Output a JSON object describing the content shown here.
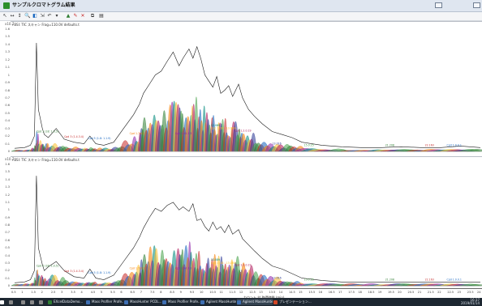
{
  "window": {
    "title": "サンプルクロマトグラム結果"
  },
  "toolbar": {
    "icons": [
      "pointer-icon",
      "scale-icon",
      "zoom-icon",
      "pan-icon",
      "fit-icon",
      "autoscale-icon",
      "undo-icon",
      "redo-icon",
      "mark-peaks-icon",
      "label-icon",
      "clear-icon",
      "copy-icon",
      "print-icon"
    ]
  },
  "panes": [
    {
      "label": "+BSI: TIC スキャン Frag=110.0V defaults.t",
      "yaxis_title": "x10 7"
    },
    {
      "label": "+BSI: TIC スキャン Frag=110.0V defaults.t",
      "yaxis_title": "x10 7"
    }
  ],
  "chart_data": [
    {
      "type": "line",
      "title": "+BSI: TIC スキャン Frag=110.0V defaults.t",
      "xlabel": "カウント 対 取得時間 (min)",
      "ylabel": "x10 7",
      "xlim": [
        0.5,
        24
      ],
      "ylim": [
        0,
        1.6
      ],
      "yticks": [
        "1.6",
        "1.5",
        "1.4",
        "1.3",
        "1.2",
        "1.1",
        "1",
        "0.9",
        "0.8",
        "0.7",
        "0.6",
        "0.5",
        "0.4",
        "0.3",
        "0.2",
        "0.1",
        "0"
      ],
      "series": [
        {
          "x": [
            0.5,
            1.0,
            1.3,
            1.5,
            1.6,
            1.7,
            1.9,
            2.0,
            2.2,
            2.6,
            3.0,
            3.5,
            4.0,
            4.3,
            4.6,
            5.0,
            5.5,
            6.0,
            6.5,
            6.8,
            7.0,
            7.3,
            7.6,
            7.9,
            8.2,
            8.5,
            8.8,
            9.0,
            9.3,
            9.5,
            9.7,
            9.9,
            10.1,
            10.3,
            10.5,
            10.7,
            10.9,
            11.1,
            11.3,
            11.5,
            11.8,
            12.0,
            12.3,
            12.6,
            13.0,
            13.5,
            14.0,
            14.5,
            15.0,
            16.0,
            17.0,
            18.0,
            19.0,
            20.0,
            21.0,
            22.0,
            23.0,
            24.0
          ],
          "y": [
            0.04,
            0.05,
            0.08,
            0.2,
            1.42,
            0.55,
            0.3,
            0.22,
            0.18,
            0.3,
            0.16,
            0.12,
            0.1,
            0.2,
            0.1,
            0.08,
            0.12,
            0.3,
            0.48,
            0.62,
            0.76,
            0.88,
            1.0,
            1.05,
            1.18,
            1.3,
            1.12,
            1.22,
            1.34,
            1.22,
            1.37,
            1.21,
            1.0,
            0.92,
            0.84,
            0.98,
            0.76,
            0.8,
            0.86,
            0.72,
            0.88,
            0.7,
            0.55,
            0.46,
            0.36,
            0.26,
            0.22,
            0.18,
            0.12,
            0.08,
            0.06,
            0.05,
            0.05,
            0.06,
            0.05,
            0.05,
            0.07,
            0.05
          ]
        }
      ],
      "annotations": [
        "Cpd 1 (18: 1.0.5)",
        "Cpd 3 (1.4.3.4)",
        "Cpd 5 (1.8: 1.1.9)",
        "Cpd 1.7.0.2",
        "Cpd 2.44.3.3",
        "13.089",
        "Cpd 1 (18 : 13.089)",
        "Cpd 1.2.0.19",
        "13.016",
        "15.0.25",
        "21.208",
        "22.163",
        "Cpd 1.0.0.1"
      ]
    },
    {
      "type": "line",
      "title": "+BSI: TIC スキャン Frag=110.0V defaults.t",
      "xlabel": "カウント 対 取得時間 (min)",
      "ylabel": "x10 7",
      "xlim": [
        0.5,
        24
      ],
      "ylim": [
        0,
        1.6
      ],
      "yticks": [
        "1.6",
        "1.5",
        "1.4",
        "1.3",
        "1.2",
        "1.1",
        "1",
        "0.9",
        "0.8",
        "0.7",
        "0.6",
        "0.5",
        "0.4",
        "0.3",
        "0.2",
        "0.1",
        "0"
      ],
      "series": [
        {
          "x": [
            0.5,
            1.0,
            1.3,
            1.5,
            1.6,
            1.7,
            1.9,
            2.0,
            2.2,
            2.6,
            3.0,
            3.5,
            4.0,
            4.3,
            4.6,
            5.0,
            5.5,
            6.0,
            6.5,
            6.8,
            7.0,
            7.3,
            7.6,
            7.9,
            8.2,
            8.5,
            8.8,
            9.0,
            9.3,
            9.5,
            9.7,
            9.9,
            10.1,
            10.3,
            10.5,
            10.7,
            10.9,
            11.1,
            11.3,
            11.5,
            11.8,
            12.0,
            12.3,
            12.6,
            13.0,
            13.5,
            14.0,
            14.5,
            15.0,
            16.0,
            17.0,
            18.0,
            19.0,
            20.0,
            21.0,
            22.0,
            23.0,
            24.0
          ],
          "y": [
            0.04,
            0.05,
            0.08,
            0.2,
            1.45,
            0.5,
            0.28,
            0.2,
            0.25,
            0.32,
            0.2,
            0.12,
            0.1,
            0.22,
            0.1,
            0.08,
            0.14,
            0.32,
            0.5,
            0.64,
            0.76,
            0.9,
            1.02,
            0.98,
            1.06,
            1.1,
            1.0,
            1.04,
            0.98,
            1.08,
            0.86,
            0.88,
            0.78,
            0.72,
            0.84,
            0.74,
            0.78,
            0.7,
            0.8,
            0.68,
            0.74,
            0.62,
            0.54,
            0.46,
            0.36,
            0.26,
            0.22,
            0.16,
            0.1,
            0.07,
            0.05,
            0.05,
            0.05,
            0.05,
            0.05,
            0.05,
            0.05,
            0.05
          ]
        }
      ],
      "annotations": [
        "Cpd 1 (18: 1.0.5)",
        "Cpd 3 (1.4.3.4)",
        "Cpd 5 (1.8: 1.1.9)",
        "Cpd 1.7.0.2",
        "Cpd 2.44.3.3",
        "13.089",
        "Cpd 1 (18 : 13.089)",
        "Cpd 1.2.0.19",
        "13.016",
        "15.0.25",
        "21.208",
        "22.163",
        "Cpd 1.0.0.1"
      ]
    }
  ],
  "xaxis": {
    "ticks": [
      "0.5",
      "1",
      "1.5",
      "2",
      "2.5",
      "3",
      "3.5",
      "4",
      "4.5",
      "5",
      "5.5",
      "6",
      "6.5",
      "7",
      "7.5",
      "8",
      "8.5",
      "9",
      "9.5",
      "10",
      "10.5",
      "11",
      "11.5",
      "12",
      "12.5",
      "13",
      "13.5",
      "14",
      "14.5",
      "15",
      "15.5",
      "16",
      "16.5",
      "17",
      "17.5",
      "18",
      "18.5",
      "19",
      "19.5",
      "20",
      "20.5",
      "21",
      "21.5",
      "22",
      "22.5",
      "23",
      "23.5",
      "24"
    ],
    "title": "カウント 対 取得時間 (min)"
  },
  "taskbar": {
    "items": [
      {
        "label": ""
      },
      {
        "label": ""
      },
      {
        "label": ""
      },
      {
        "label": ""
      },
      {
        "label": ""
      },
      {
        "label": "EXcelDataDemo..."
      },
      {
        "label": "Mass Profiler Profe..."
      },
      {
        "label": "MassHunter PCDL..."
      },
      {
        "label": "Mass Profiler Profe..."
      },
      {
        "label": "Agilent MassHunte..."
      },
      {
        "label": "Agilent MassHunte..."
      },
      {
        "label": "プレゼンテーション..."
      }
    ],
    "time": "16:37",
    "date": "2019/01/14"
  },
  "colors": {
    "trace": "#1a1a1a",
    "cpd": [
      "#2e7d32",
      "#c62828",
      "#1565c0",
      "#f57c00",
      "#8e24aa",
      "#00897b",
      "#fbc02d",
      "#ad1457",
      "#283593",
      "#43a047"
    ]
  }
}
